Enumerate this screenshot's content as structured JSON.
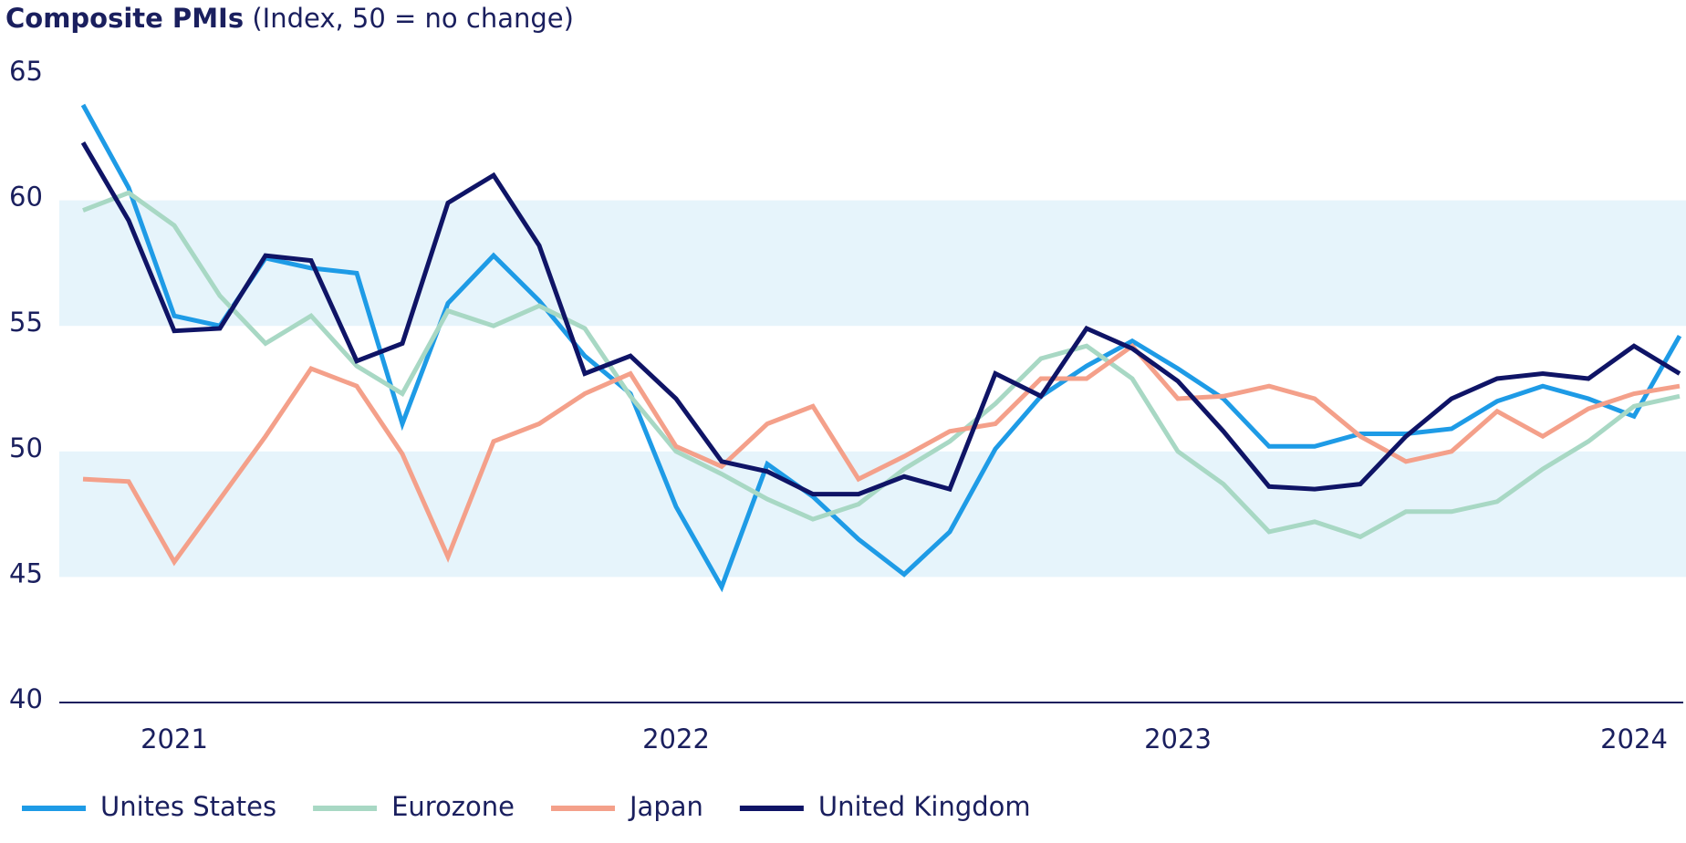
{
  "chart_data": {
    "type": "line",
    "title": "Composite PMIs",
    "subtitle": "(Index, 50 = no change)",
    "categories": [
      null,
      null,
      "2021",
      null,
      null,
      null,
      null,
      null,
      null,
      null,
      null,
      null,
      null,
      "2022",
      null,
      null,
      null,
      null,
      null,
      null,
      null,
      null,
      null,
      null,
      "2023",
      null,
      null,
      null,
      null,
      null,
      null,
      null,
      null,
      null,
      "2024",
      null
    ],
    "ylim": [
      40,
      65
    ],
    "yticks": [
      40,
      45,
      50,
      55,
      60,
      65
    ],
    "bands": [
      [
        45,
        50
      ],
      [
        55,
        60
      ]
    ],
    "band_color": "#e6f4fb",
    "legend": "bottom",
    "series": [
      {
        "name": "Unites States",
        "color": "#1e9be6",
        "values": [
          63.8,
          60.5,
          55.4,
          55.0,
          57.7,
          57.3,
          57.1,
          51.1,
          55.9,
          57.8,
          56.0,
          53.8,
          52.3,
          47.8,
          44.6,
          49.5,
          48.2,
          46.5,
          45.1,
          46.8,
          50.1,
          52.2,
          53.4,
          54.4,
          53.3,
          52.1,
          50.2,
          50.2,
          50.7,
          50.7,
          50.9,
          52.0,
          52.6,
          52.1,
          51.4,
          54.6
        ]
      },
      {
        "name": "Eurozone",
        "color": "#a8d8c4",
        "values": [
          59.6,
          60.3,
          59.0,
          56.2,
          54.3,
          55.4,
          53.4,
          52.3,
          55.6,
          55.0,
          55.8,
          54.9,
          52.2,
          50.0,
          49.1,
          48.1,
          47.3,
          47.9,
          49.3,
          50.4,
          51.9,
          53.7,
          54.2,
          52.9,
          50.0,
          48.7,
          46.8,
          47.2,
          46.6,
          47.6,
          47.6,
          48.0,
          49.3,
          50.4,
          51.8,
          52.2
        ]
      },
      {
        "name": "Japan",
        "color": "#f4a08a",
        "values": [
          48.9,
          48.8,
          45.6,
          48.1,
          50.6,
          53.3,
          52.6,
          49.9,
          45.8,
          50.4,
          51.1,
          52.3,
          53.1,
          50.2,
          49.4,
          51.1,
          51.8,
          48.9,
          49.8,
          50.8,
          51.1,
          52.9,
          52.9,
          54.2,
          52.1,
          52.2,
          52.6,
          52.1,
          50.6,
          49.6,
          50.0,
          51.6,
          50.6,
          51.7,
          52.3,
          52.6
        ]
      },
      {
        "name": "United Kingdom",
        "color": "#0f1466",
        "values": [
          62.3,
          59.2,
          54.8,
          54.9,
          57.8,
          57.6,
          53.6,
          54.3,
          59.9,
          61.0,
          58.2,
          53.1,
          53.8,
          52.1,
          49.6,
          49.2,
          48.3,
          48.3,
          49.0,
          48.5,
          53.1,
          52.2,
          54.9,
          54.1,
          52.8,
          50.8,
          48.6,
          48.5,
          48.7,
          50.6,
          52.1,
          52.9,
          53.1,
          52.9,
          54.2,
          53.1
        ]
      }
    ]
  }
}
